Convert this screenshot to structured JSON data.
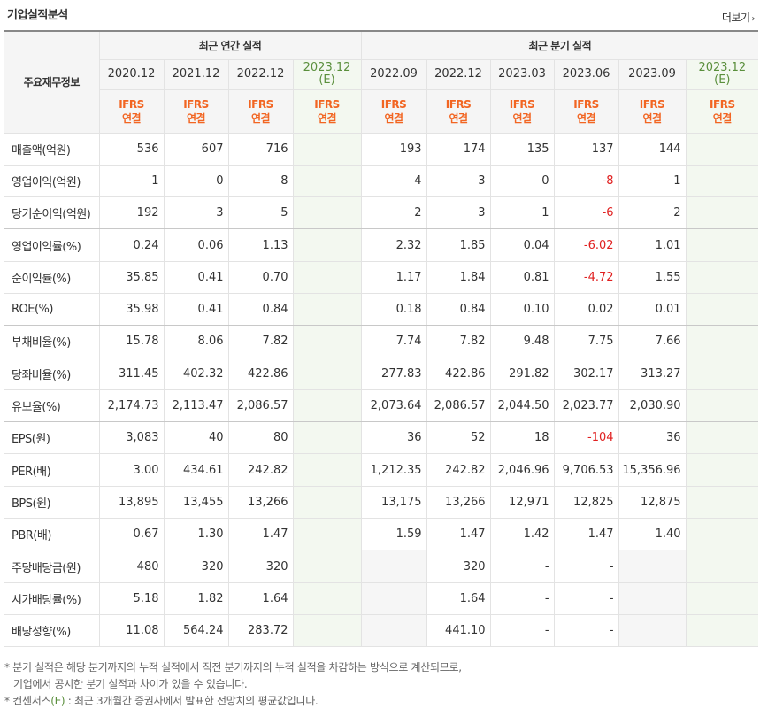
{
  "header": {
    "title": "기업실적분석",
    "more_label": "더보기",
    "more_arrow": "›"
  },
  "table": {
    "row_header_label": "주요재무정보",
    "annual_group_label": "최근 연간 실적",
    "quarter_group_label": "최근 분기 실적",
    "periods": [
      "2020.12",
      "2021.12",
      "2022.12",
      "2023.12",
      "2022.09",
      "2022.12",
      "2023.03",
      "2023.06",
      "2023.09",
      "2023.12"
    ],
    "estimate_mark": "(E)",
    "standard_line1": "IFRS",
    "standard_line2": "연결",
    "rows": [
      {
        "label": "매출액(억원)",
        "values": [
          "536",
          "607",
          "716",
          "",
          "193",
          "174",
          "135",
          "137",
          "144",
          ""
        ]
      },
      {
        "label": "영업이익(억원)",
        "values": [
          "1",
          "0",
          "8",
          "",
          "4",
          "3",
          "0",
          "-8",
          "1",
          ""
        ]
      },
      {
        "label": "당기순이익(억원)",
        "values": [
          "192",
          "3",
          "5",
          "",
          "2",
          "3",
          "1",
          "-6",
          "2",
          ""
        ]
      },
      {
        "label": "영업이익률(%)",
        "values": [
          "0.24",
          "0.06",
          "1.13",
          "",
          "2.32",
          "1.85",
          "0.04",
          "-6.02",
          "1.01",
          ""
        ]
      },
      {
        "label": "순이익률(%)",
        "values": [
          "35.85",
          "0.41",
          "0.70",
          "",
          "1.17",
          "1.84",
          "0.81",
          "-4.72",
          "1.55",
          ""
        ]
      },
      {
        "label": "ROE(%)",
        "values": [
          "35.98",
          "0.41",
          "0.84",
          "",
          "0.18",
          "0.84",
          "0.10",
          "0.02",
          "0.01",
          ""
        ]
      },
      {
        "label": "부채비율(%)",
        "values": [
          "15.78",
          "8.06",
          "7.82",
          "",
          "7.74",
          "7.82",
          "9.48",
          "7.75",
          "7.66",
          ""
        ]
      },
      {
        "label": "당좌비율(%)",
        "values": [
          "311.45",
          "402.32",
          "422.86",
          "",
          "277.83",
          "422.86",
          "291.82",
          "302.17",
          "313.27",
          ""
        ]
      },
      {
        "label": "유보율(%)",
        "values": [
          "2,174.73",
          "2,113.47",
          "2,086.57",
          "",
          "2,073.64",
          "2,086.57",
          "2,044.50",
          "2,023.77",
          "2,030.90",
          ""
        ]
      },
      {
        "label": "EPS(원)",
        "values": [
          "3,083",
          "40",
          "80",
          "",
          "36",
          "52",
          "18",
          "-104",
          "36",
          ""
        ]
      },
      {
        "label": "PER(배)",
        "values": [
          "3.00",
          "434.61",
          "242.82",
          "",
          "1,212.35",
          "242.82",
          "2,046.96",
          "9,706.53",
          "15,356.96",
          ""
        ]
      },
      {
        "label": "BPS(원)",
        "values": [
          "13,895",
          "13,455",
          "13,266",
          "",
          "13,175",
          "13,266",
          "12,971",
          "12,825",
          "12,875",
          ""
        ]
      },
      {
        "label": "PBR(배)",
        "values": [
          "0.67",
          "1.30",
          "1.47",
          "",
          "1.59",
          "1.47",
          "1.42",
          "1.47",
          "1.40",
          ""
        ]
      },
      {
        "label": "주당배당금(원)",
        "values": [
          "480",
          "320",
          "320",
          "",
          "",
          "320",
          "-",
          "-",
          "",
          ""
        ]
      },
      {
        "label": "시가배당률(%)",
        "values": [
          "5.18",
          "1.82",
          "1.64",
          "",
          "",
          "1.64",
          "-",
          "-",
          "",
          ""
        ]
      },
      {
        "label": "배당성향(%)",
        "values": [
          "11.08",
          "564.24",
          "283.72",
          "",
          "",
          "441.10",
          "-",
          "-",
          "",
          ""
        ]
      }
    ]
  },
  "notes": {
    "line1": "분기 실적은 해당 분기까지의 누적 실적에서 직전 분기까지의 누적 실적을 차감하는 방식으로 계산되므로,",
    "line2": "기업에서 공시한 분기 실적과 차이가 있을 수 있습니다.",
    "line3_prefix": "컨센서스",
    "line3_mark": "(E)",
    "line3_suffix": ": 최근 3개월간 증권사에서 발표한 전망치의 평균값입니다.",
    "bullet": "*"
  }
}
